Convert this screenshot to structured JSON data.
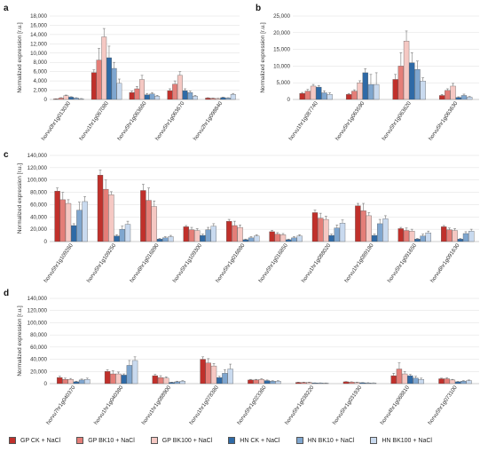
{
  "series_legend": [
    {
      "name": "GP CK + NaCl",
      "color": "#c0302b"
    },
    {
      "name": "GP BK10 + NaCl",
      "color": "#e47e78"
    },
    {
      "name": "GP BK100 + NaCl",
      "color": "#f5c8c3"
    },
    {
      "name": "HN CK + NaCl",
      "color": "#2f6aa6"
    },
    {
      "name": "HN BK10 + NaCl",
      "color": "#7fa6cf"
    },
    {
      "name": "HN BK100 + NaCl",
      "color": "#c9daef"
    }
  ],
  "chart_data": [
    {
      "type": "bar",
      "panel": "a",
      "ylabel": "Normalized expression [r.u.]",
      "ylim": [
        0,
        18000
      ],
      "yticks": [
        0,
        2000,
        4000,
        6000,
        8000,
        10000,
        12000,
        14000,
        16000,
        18000
      ],
      "categories": [
        "horvu0hr1g013030",
        "horvu1hr1g067080",
        "horvu5hr1g063660",
        "horvu5hr1g063670",
        "horvu2hr1g098840"
      ],
      "series": [
        {
          "name": "GP CK + NaCl",
          "values": [
            100,
            5800,
            1500,
            1900,
            300
          ],
          "errors": [
            50,
            600,
            300,
            400,
            80
          ]
        },
        {
          "name": "GP BK10 + NaCl",
          "values": [
            300,
            8500,
            2300,
            3300,
            250
          ],
          "errors": [
            100,
            2500,
            500,
            700,
            60
          ]
        },
        {
          "name": "GP BK100 + NaCl",
          "values": [
            800,
            13500,
            4300,
            5200,
            200
          ],
          "errors": [
            150,
            1800,
            900,
            800,
            50
          ]
        },
        {
          "name": "HN CK + NaCl",
          "values": [
            500,
            9000,
            1000,
            1900,
            400
          ],
          "errors": [
            100,
            2500,
            300,
            400,
            100
          ]
        },
        {
          "name": "HN BK10 + NaCl",
          "values": [
            300,
            6700,
            1200,
            1500,
            300
          ],
          "errors": [
            80,
            1300,
            300,
            300,
            80
          ]
        },
        {
          "name": "HN BK100 + NaCl",
          "values": [
            150,
            3500,
            700,
            700,
            1100
          ],
          "errors": [
            50,
            900,
            200,
            200,
            200
          ]
        }
      ]
    },
    {
      "type": "bar",
      "panel": "b",
      "ylabel": "Normalized expression [r.u.]",
      "ylim": [
        0,
        25000
      ],
      "yticks": [
        0,
        5000,
        10000,
        15000,
        20000,
        25000
      ],
      "categories": [
        "horvu1hr1g087740",
        "horvu5hr1g063590",
        "horvu5hr1g063620",
        "horvu5hr1g063630"
      ],
      "series": [
        {
          "name": "GP CK + NaCl",
          "values": [
            1800,
            1500,
            6000,
            1200
          ],
          "errors": [
            300,
            300,
            1500,
            300
          ]
        },
        {
          "name": "GP BK10 + NaCl",
          "values": [
            2500,
            2500,
            10000,
            2700
          ],
          "errors": [
            500,
            400,
            4000,
            500
          ]
        },
        {
          "name": "GP BK100 + NaCl",
          "values": [
            4000,
            5000,
            17500,
            4000
          ],
          "errors": [
            500,
            600,
            3000,
            800
          ]
        },
        {
          "name": "HN CK + NaCl",
          "values": [
            3700,
            8000,
            11000,
            600
          ],
          "errors": [
            500,
            1200,
            3000,
            200
          ]
        },
        {
          "name": "HN BK10 + NaCl",
          "values": [
            2000,
            4500,
            9000,
            1200
          ],
          "errors": [
            600,
            3000,
            2500,
            400
          ]
        },
        {
          "name": "HN BK100 + NaCl",
          "values": [
            1500,
            4500,
            5500,
            700
          ],
          "errors": [
            500,
            3500,
            1000,
            200
          ]
        }
      ]
    },
    {
      "type": "bar",
      "panel": "c",
      "ylabel": "Normalized expression [r.u.]",
      "ylim": [
        0,
        140000
      ],
      "yticks": [
        0,
        20000,
        40000,
        60000,
        80000,
        100000,
        120000,
        140000
      ],
      "categories": [
        "horvu5hr1g109260",
        "horvu5hr1g109250",
        "horvu6hr1g016890",
        "horvu5hr1g109300",
        "horvu5hr1g016880",
        "horvu5hr1g016850",
        "horvu1hr1g088020",
        "horvu1hr1g089180",
        "horvu5hr1g091650",
        "horvu6hr1g091630"
      ],
      "series": [
        {
          "name": "GP CK + NaCl",
          "values": [
            82000,
            108000,
            83000,
            24000,
            33000,
            16000,
            47000,
            58000,
            21000,
            24000
          ],
          "errors": [
            5000,
            8000,
            10000,
            2000,
            3000,
            2000,
            4000,
            4000,
            2000,
            2000
          ]
        },
        {
          "name": "GP BK10 + NaCl",
          "values": [
            68000,
            85000,
            67000,
            19000,
            26000,
            12000,
            38000,
            50000,
            18000,
            19000
          ],
          "errors": [
            12000,
            15000,
            20000,
            4000,
            7000,
            2500,
            8000,
            12000,
            4000,
            3000
          ]
        },
        {
          "name": "GP BK100 + NaCl",
          "values": [
            62000,
            76000,
            57000,
            18000,
            23000,
            11000,
            36000,
            42000,
            17000,
            18000
          ],
          "errors": [
            6000,
            5000,
            9000,
            3000,
            4000,
            2000,
            5000,
            5000,
            3000,
            3000
          ]
        },
        {
          "name": "HN CK + NaCl",
          "values": [
            26000,
            9000,
            4000,
            10000,
            3000,
            3000,
            10000,
            10000,
            4000,
            4000
          ],
          "errors": [
            3000,
            2000,
            1000,
            2000,
            1000,
            1000,
            2000,
            2000,
            1000,
            1000
          ]
        },
        {
          "name": "HN BK10 + NaCl",
          "values": [
            51000,
            20000,
            6000,
            19000,
            6000,
            6000,
            22000,
            29000,
            9000,
            13000
          ],
          "errors": [
            13000,
            5000,
            2000,
            4000,
            2000,
            2000,
            5000,
            7000,
            3000,
            3000
          ]
        },
        {
          "name": "HN BK100 + NaCl",
          "values": [
            65000,
            28000,
            8000,
            25000,
            9000,
            9000,
            30000,
            37000,
            14000,
            17000
          ],
          "errors": [
            8000,
            5000,
            2000,
            4000,
            2000,
            2000,
            5000,
            5000,
            3000,
            3000
          ]
        }
      ]
    },
    {
      "type": "bar",
      "panel": "d",
      "ylabel": "Normalized expression [r.u.]",
      "ylim": [
        0,
        140000
      ],
      "yticks": [
        0,
        20000,
        40000,
        60000,
        80000,
        100000,
        120000,
        140000
      ],
      "categories": [
        "horvu7hr1g040370",
        "horvu1hr1g040380",
        "horvu1hr1g088900",
        "horvu1hr1g078380",
        "horvu5hr1g023360",
        "horvu5hr1g038220",
        "horvu5hr1g031930",
        "horvu4hr1g068810",
        "horvu5hr1g073100"
      ],
      "series": [
        {
          "name": "GP CK + NaCl",
          "values": [
            10000,
            20000,
            13000,
            40000,
            6000,
            2000,
            3000,
            13000,
            8000
          ],
          "errors": [
            2000,
            3000,
            2000,
            4000,
            1000,
            500,
            500,
            4000,
            1000
          ]
        },
        {
          "name": "GP BK10 + NaCl",
          "values": [
            7000,
            16000,
            10000,
            34000,
            6000,
            2000,
            2500,
            24000,
            8000
          ],
          "errors": [
            2000,
            5000,
            3000,
            7000,
            1000,
            500,
            500,
            10000,
            1500
          ]
        },
        {
          "name": "GP BK100 + NaCl",
          "values": [
            7000,
            16000,
            9000,
            29000,
            7000,
            2000,
            2000,
            16000,
            6000
          ],
          "errors": [
            1500,
            3000,
            2000,
            4000,
            1000,
            500,
            500,
            4000,
            1000
          ]
        },
        {
          "name": "HN CK + NaCl",
          "values": [
            3000,
            14000,
            2000,
            10000,
            5000,
            1000,
            1500,
            13000,
            3000
          ],
          "errors": [
            1000,
            2000,
            500,
            2000,
            1000,
            300,
            300,
            2000,
            700
          ]
        },
        {
          "name": "HN BK10 + NaCl",
          "values": [
            6000,
            30000,
            3000,
            17000,
            4000,
            1000,
            1200,
            9000,
            4000
          ],
          "errors": [
            1500,
            8000,
            1000,
            6000,
            800,
            300,
            300,
            3000,
            1000
          ]
        },
        {
          "name": "HN BK100 + NaCl",
          "values": [
            7000,
            38000,
            4000,
            24000,
            4000,
            800,
            1000,
            7000,
            5000
          ],
          "errors": [
            2000,
            6000,
            1000,
            8000,
            800,
            300,
            300,
            2000,
            1000
          ]
        }
      ]
    }
  ]
}
